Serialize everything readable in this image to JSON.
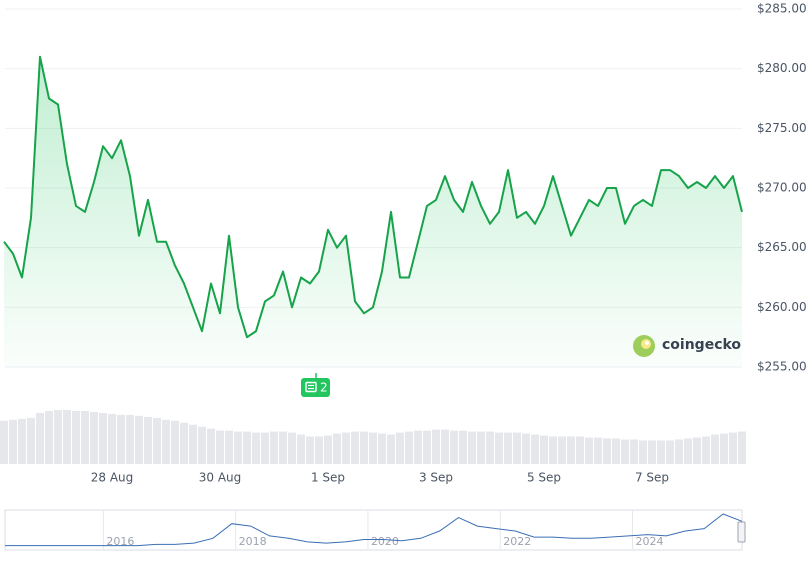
{
  "chart_data": {
    "type": "line",
    "categories": [
      null,
      null,
      null,
      null,
      null,
      null,
      null,
      null,
      null,
      null,
      null,
      null,
      "28 Aug",
      null,
      null,
      null,
      null,
      null,
      null,
      null,
      null,
      null,
      null,
      null,
      "30 Aug",
      null,
      null,
      null,
      null,
      null,
      null,
      null,
      null,
      null,
      null,
      null,
      "1 Sep",
      null,
      null,
      null,
      null,
      null,
      null,
      null,
      null,
      null,
      null,
      null,
      "3 Sep",
      null,
      null,
      null,
      null,
      null,
      null,
      null,
      null,
      null,
      null,
      null,
      "5 Sep",
      null,
      null,
      null,
      null,
      null,
      null,
      null,
      null,
      null,
      null,
      null,
      "7 Sep",
      null,
      null,
      null,
      null,
      null,
      null,
      null,
      null,
      null,
      null
    ],
    "series": [
      {
        "color": "#16a34a",
        "values": [
          265.5,
          264.5,
          262.5,
          267.5,
          281,
          277.5,
          277,
          272,
          268.5,
          268,
          270.5,
          273.5,
          272.5,
          274,
          271,
          266,
          269,
          265.5,
          265.5,
          263.5,
          262,
          260,
          258,
          262,
          259.5,
          266,
          260,
          257.5,
          258,
          260.5,
          261,
          263,
          260,
          262.5,
          262,
          263,
          266.5,
          265,
          266,
          260.5,
          259.5,
          260,
          263,
          268,
          262.5,
          262.5,
          265.5,
          268.5,
          269,
          271,
          269,
          268,
          270.5,
          268.5,
          267,
          268,
          271.5,
          267.5,
          268,
          267,
          268.5,
          271,
          268.5,
          266,
          267.5,
          269,
          268.5,
          270,
          270,
          267,
          268.5,
          269,
          268.5,
          271.5,
          271.5,
          271,
          270,
          270.5,
          270,
          271,
          270,
          271,
          268
        ]
      }
    ],
    "volume": [
      44,
      45,
      46,
      47,
      52,
      54,
      55,
      55,
      54,
      54,
      53,
      52,
      51,
      50,
      50,
      49,
      48,
      47,
      45,
      44,
      42,
      40,
      38,
      36,
      34,
      34,
      33,
      33,
      32,
      32,
      33,
      33,
      32,
      30,
      28,
      28,
      29,
      31,
      32,
      33,
      33,
      32,
      31,
      30,
      32,
      33,
      34,
      34,
      35,
      35,
      34,
      34,
      33,
      33,
      33,
      32,
      32,
      32,
      31,
      30,
      29,
      28,
      28,
      28,
      28,
      27,
      27,
      26,
      26,
      25,
      25,
      24,
      24,
      24,
      24,
      25,
      26,
      27,
      28,
      30,
      31,
      32,
      33
    ],
    "ylim": [
      255,
      285
    ],
    "yticks": [
      {
        "value": 255,
        "label": "$255.00"
      },
      {
        "value": 260,
        "label": "$260.00"
      },
      {
        "value": 265,
        "label": "$265.00"
      },
      {
        "value": 270,
        "label": "$270.00"
      },
      {
        "value": 275,
        "label": "$275.00"
      },
      {
        "value": 280,
        "label": "$280.00"
      },
      {
        "value": 285,
        "label": "$285.00"
      }
    ],
    "grid": true,
    "news_badge": 2,
    "watermark": "coingecko",
    "navigator": {
      "categories": [
        null,
        null,
        null,
        null,
        null,
        null,
        "2016",
        null,
        null,
        null,
        null,
        null,
        null,
        "2018",
        null,
        null,
        null,
        null,
        null,
        null,
        "2020",
        null,
        null,
        null,
        null,
        null,
        null,
        "2022",
        null,
        null,
        null,
        null,
        null,
        null,
        "2024",
        null,
        null,
        null,
        null,
        null
      ],
      "values": [
        2,
        2,
        2,
        2,
        2,
        2,
        2,
        2,
        3,
        3,
        4,
        8,
        20,
        18,
        10,
        8,
        5,
        4,
        5,
        7,
        7,
        6,
        8,
        14,
        25,
        18,
        16,
        14,
        9,
        9,
        8,
        8,
        9,
        10,
        11,
        10,
        14,
        16,
        28,
        22
      ],
      "color": "#3b6fb6"
    }
  }
}
